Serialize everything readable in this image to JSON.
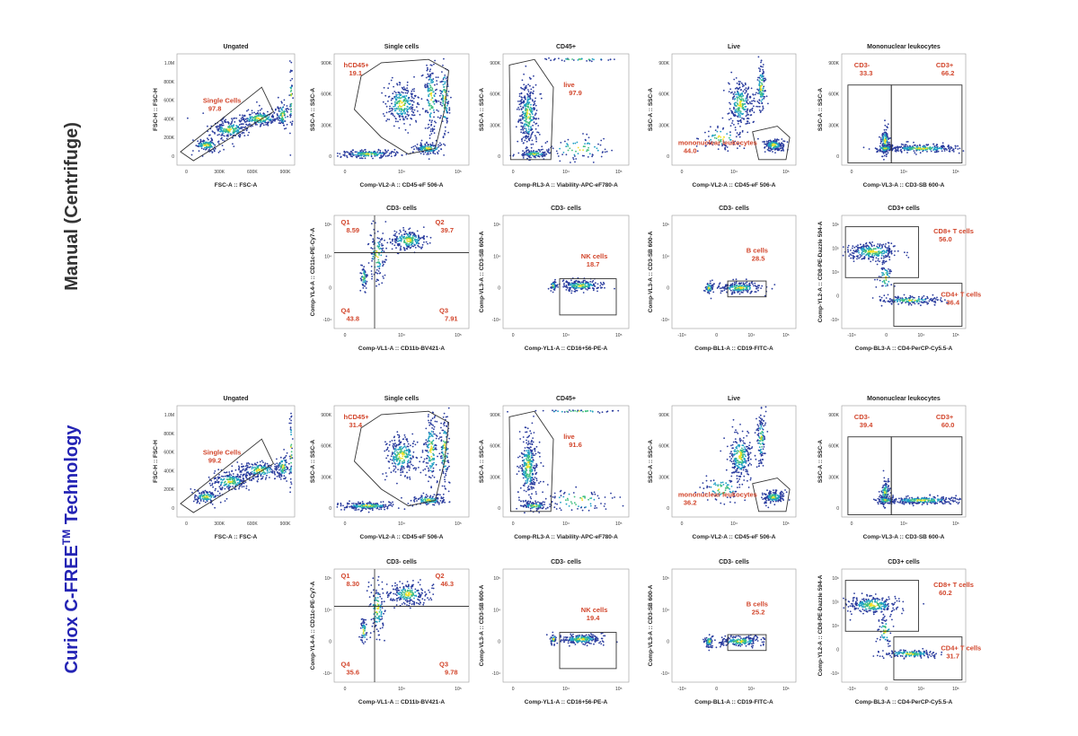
{
  "sections": [
    {
      "row_label": {
        "text": "Manual (Centrifuge)"
      },
      "top": [
        {
          "title": "Ungated",
          "x_label": "FSC-A :: FSC-A",
          "y_label": "FSC-H :: FSC-H",
          "xticks": [
            "0",
            "300K",
            "600K",
            "900K"
          ],
          "yticks": [
            "0",
            "200K",
            "400K",
            "600K",
            "800K",
            "1.0M"
          ],
          "gates": [
            {
              "label": "Single Cells",
              "value": "97.8"
            }
          ]
        },
        {
          "title": "Single cells",
          "x_label": "Comp-VL2-A :: CD45-eF 506-A",
          "y_label": "SSC-A :: SSC-A",
          "xticks": [
            "0",
            "10⁴",
            "10⁵"
          ],
          "yticks": [
            "0",
            "300K",
            "600K",
            "900K"
          ],
          "gates": [
            {
              "label": "hCD45+",
              "value": "19.1"
            }
          ]
        },
        {
          "title": "CD45+",
          "x_label": "Comp-RL3-A :: Viability-APC-eF780-A",
          "y_label": "SSC-A :: SSC-A",
          "xticks": [
            "0",
            "10⁴",
            "10⁵"
          ],
          "yticks": [
            "0",
            "300K",
            "600K",
            "900K"
          ],
          "gates": [
            {
              "label": "live",
              "value": "97.9"
            }
          ]
        },
        {
          "title": "Live",
          "x_label": "Comp-VL2-A :: CD45-eF 506-A",
          "y_label": "SSC-A :: SSC-A",
          "xticks": [
            "0",
            "10⁴",
            "10⁵"
          ],
          "yticks": [
            "0",
            "300K",
            "600K",
            "900K"
          ],
          "gates": [
            {
              "label": "mononuclear leukocytes",
              "value": "44.0"
            }
          ]
        },
        {
          "title": "Mononuclear leukocytes",
          "x_label": "Comp-VL3-A :: CD3-SB 600-A",
          "y_label": "SSC-A :: SSC-A",
          "xticks": [
            "0",
            "10⁴",
            "10⁵"
          ],
          "yticks": [
            "0",
            "300K",
            "600K",
            "900K"
          ],
          "gates": [
            {
              "label": "CD3-",
              "value": "33.3"
            },
            {
              "label": "CD3+",
              "value": "66.2"
            }
          ]
        }
      ],
      "bottom": [
        {
          "title": "CD3- cells",
          "x_label": "Comp-VL1-A :: CD11b-BV421-A",
          "y_label": "Comp-YL4-A :: CD11c-PE-Cy7-A",
          "xticks": [
            "0",
            "10⁴",
            "10⁵"
          ],
          "yticks": [
            "-10⁴",
            "0",
            "10⁴",
            "10⁵"
          ],
          "gates": [
            {
              "label": "Q1",
              "value": "8.59"
            },
            {
              "label": "Q2",
              "value": "39.7"
            },
            {
              "label": "Q4",
              "value": "43.8"
            },
            {
              "label": "Q3",
              "value": "7.91"
            }
          ]
        },
        {
          "title": "CD3- cells",
          "x_label": "Comp-YL1-A :: CD16+56-PE-A",
          "y_label": "Comp-VL3-A :: CD3-SB 600-A",
          "xticks": [
            "0",
            "10⁴",
            "10⁵"
          ],
          "yticks": [
            "-10⁴",
            "0",
            "10⁴",
            "10⁵"
          ],
          "gates": [
            {
              "label": "NK cells",
              "value": "18.7"
            }
          ]
        },
        {
          "title": "CD3- cells",
          "x_label": "Comp-BL1-A :: CD19-FITC-A",
          "y_label": "Comp-VL3-A :: CD3-SB 600-A",
          "xticks": [
            "-10⁴",
            "0",
            "10⁴",
            "10⁵"
          ],
          "yticks": [
            "-10⁴",
            "0",
            "10⁴",
            "10⁵"
          ],
          "gates": [
            {
              "label": "B cells",
              "value": "28.5"
            }
          ]
        },
        {
          "title": "CD3+ cells",
          "x_label": "Comp-BL3-A :: CD4-PerCP-Cy5.5-A",
          "y_label": "Comp-YL2-A :: CD8-PE-Dazzle 594-A",
          "xticks": [
            "-10⁴",
            "0",
            "10⁴",
            "10⁵"
          ],
          "yticks": [
            "-10⁴",
            "0",
            "10⁴",
            "10⁵",
            "10⁶"
          ],
          "gates": [
            {
              "label": "CD8+ T cells",
              "value": "56.0"
            },
            {
              "label": "CD4+ T cells",
              "value": "36.4"
            }
          ]
        }
      ]
    },
    {
      "row_label": {
        "text": "Curiox C-FREE",
        "superscript": "TM",
        "suffix": " Technology"
      },
      "top": [
        {
          "title": "Ungated",
          "x_label": "FSC-A :: FSC-A",
          "y_label": "FSC-H :: FSC-H",
          "xticks": [
            "0",
            "300K",
            "600K",
            "900K"
          ],
          "yticks": [
            "0",
            "200K",
            "400K",
            "600K",
            "800K",
            "1.0M"
          ],
          "gates": [
            {
              "label": "Single Cells",
              "value": "99.2"
            }
          ]
        },
        {
          "title": "Single cells",
          "x_label": "Comp-VL2-A :: CD45-eF 506-A",
          "y_label": "SSC-A :: SSC-A",
          "xticks": [
            "0",
            "10⁴",
            "10⁵"
          ],
          "yticks": [
            "0",
            "300K",
            "600K",
            "900K"
          ],
          "gates": [
            {
              "label": "hCD45+",
              "value": "31.4"
            }
          ]
        },
        {
          "title": "CD45+",
          "x_label": "Comp-RL3-A :: Viability-APC-eF780-A",
          "y_label": "SSC-A :: SSC-A",
          "xticks": [
            "0",
            "10⁴",
            "10⁵"
          ],
          "yticks": [
            "0",
            "300K",
            "600K",
            "900K"
          ],
          "gates": [
            {
              "label": "live",
              "value": "91.6"
            }
          ]
        },
        {
          "title": "Live",
          "x_label": "Comp-VL2-A :: CD45-eF 506-A",
          "y_label": "SSC-A :: SSC-A",
          "xticks": [
            "0",
            "10⁴",
            "10⁵"
          ],
          "yticks": [
            "0",
            "300K",
            "600K",
            "900K"
          ],
          "gates": [
            {
              "label": "mononuclear leukocytes",
              "value": "36.2"
            }
          ]
        },
        {
          "title": "Mononuclear leukocytes",
          "x_label": "Comp-VL3-A :: CD3-SB 600-A",
          "y_label": "SSC-A :: SSC-A",
          "xticks": [
            "0",
            "10⁴",
            "10⁵"
          ],
          "yticks": [
            "0",
            "300K",
            "600K",
            "900K"
          ],
          "gates": [
            {
              "label": "CD3-",
              "value": "39.4"
            },
            {
              "label": "CD3+",
              "value": "60.0"
            }
          ]
        }
      ],
      "bottom": [
        {
          "title": "CD3- cells",
          "x_label": "Comp-VL1-A :: CD11b-BV421-A",
          "y_label": "Comp-YL4-A :: CD11c-PE-Cy7-A",
          "xticks": [
            "0",
            "10⁴",
            "10⁵"
          ],
          "yticks": [
            "-10⁴",
            "0",
            "10⁴",
            "10⁵"
          ],
          "gates": [
            {
              "label": "Q1",
              "value": "8.30"
            },
            {
              "label": "Q2",
              "value": "46.3"
            },
            {
              "label": "Q4",
              "value": "35.6"
            },
            {
              "label": "Q3",
              "value": "9.78"
            }
          ]
        },
        {
          "title": "CD3- cells",
          "x_label": "Comp-YL1-A :: CD16+56-PE-A",
          "y_label": "Comp-VL3-A :: CD3-SB 600-A",
          "xticks": [
            "0",
            "10⁴",
            "10⁵"
          ],
          "yticks": [
            "-10⁴",
            "0",
            "10⁴",
            "10⁵"
          ],
          "gates": [
            {
              "label": "NK cells",
              "value": "19.4"
            }
          ]
        },
        {
          "title": "CD3- cells",
          "x_label": "Comp-BL1-A :: CD19-FITC-A",
          "y_label": "Comp-VL3-A :: CD3-SB 600-A",
          "xticks": [
            "-10⁴",
            "0",
            "10⁴",
            "10⁵"
          ],
          "yticks": [
            "-10⁴",
            "0",
            "10⁴",
            "10⁵"
          ],
          "gates": [
            {
              "label": "B cells",
              "value": "25.2"
            }
          ]
        },
        {
          "title": "CD3+ cells",
          "x_label": "Comp-BL3-A :: CD4-PerCP-Cy5.5-A",
          "y_label": "Comp-YL2-A :: CD8-PE-Dazzle 594-A",
          "xticks": [
            "-10⁴",
            "0",
            "10⁴",
            "10⁵"
          ],
          "yticks": [
            "-10⁴",
            "0",
            "10⁴",
            "10⁵",
            "10⁶"
          ],
          "gates": [
            {
              "label": "CD8+ T cells",
              "value": "60.2"
            },
            {
              "label": "CD4+ T cells",
              "value": "31.7"
            }
          ]
        }
      ]
    }
  ]
}
